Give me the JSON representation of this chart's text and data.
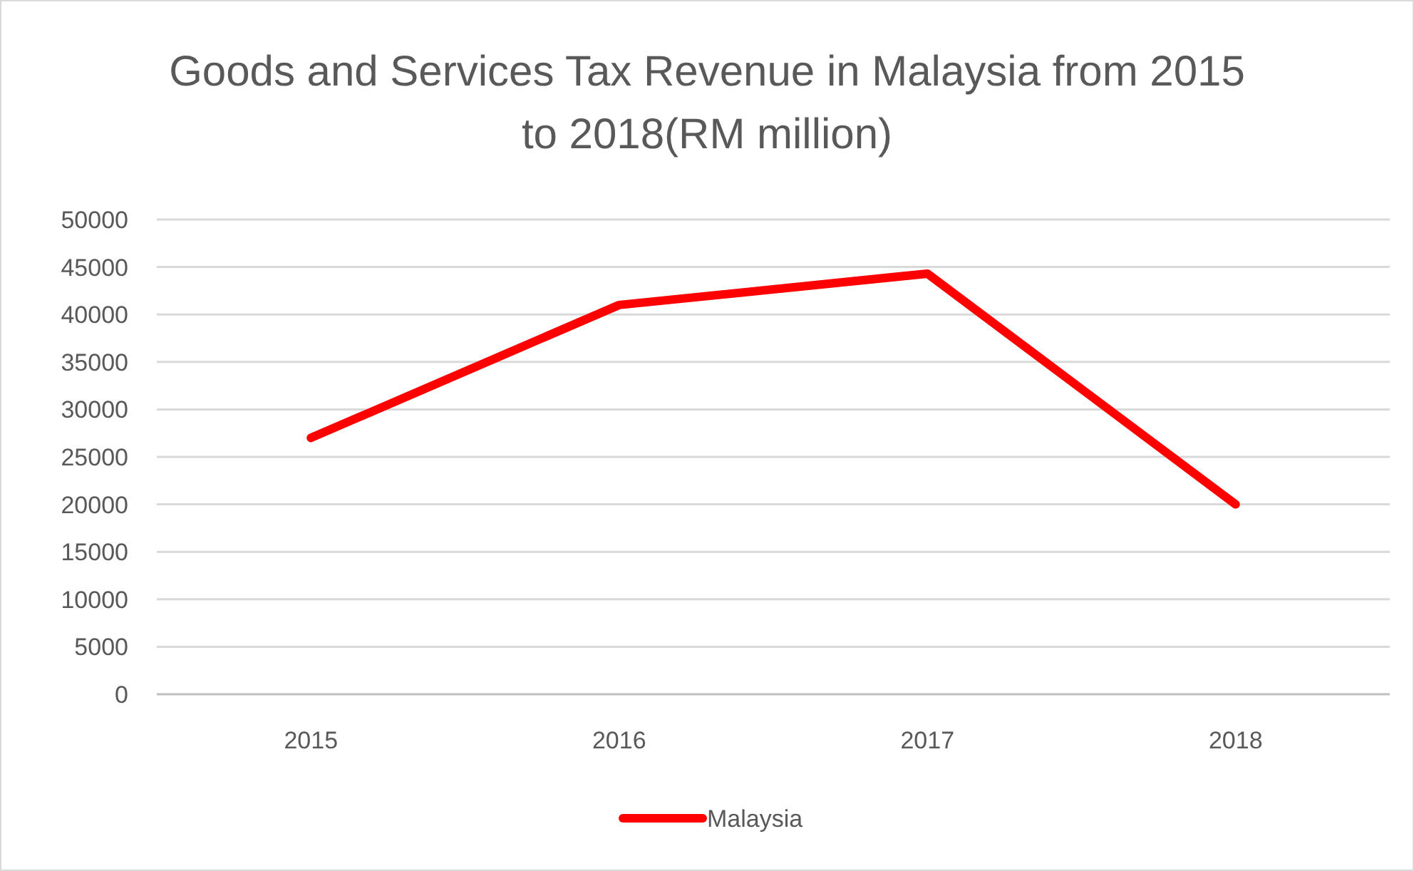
{
  "chart_data": {
    "type": "line",
    "title": "Goods and Services Tax Revenue in Malaysia from 2015 to 2018(RM million)",
    "categories": [
      "2015",
      "2016",
      "2017",
      "2018"
    ],
    "series": [
      {
        "name": "Malaysia",
        "color": "#ff0000",
        "values": [
          27000,
          41000,
          44300,
          20000
        ]
      }
    ],
    "ylim": [
      0,
      50000
    ],
    "yticks": [
      0,
      5000,
      10000,
      15000,
      20000,
      25000,
      30000,
      35000,
      40000,
      45000,
      50000
    ],
    "grid": "y",
    "legend": "bottom",
    "marker": "none",
    "line_style": "solid"
  }
}
